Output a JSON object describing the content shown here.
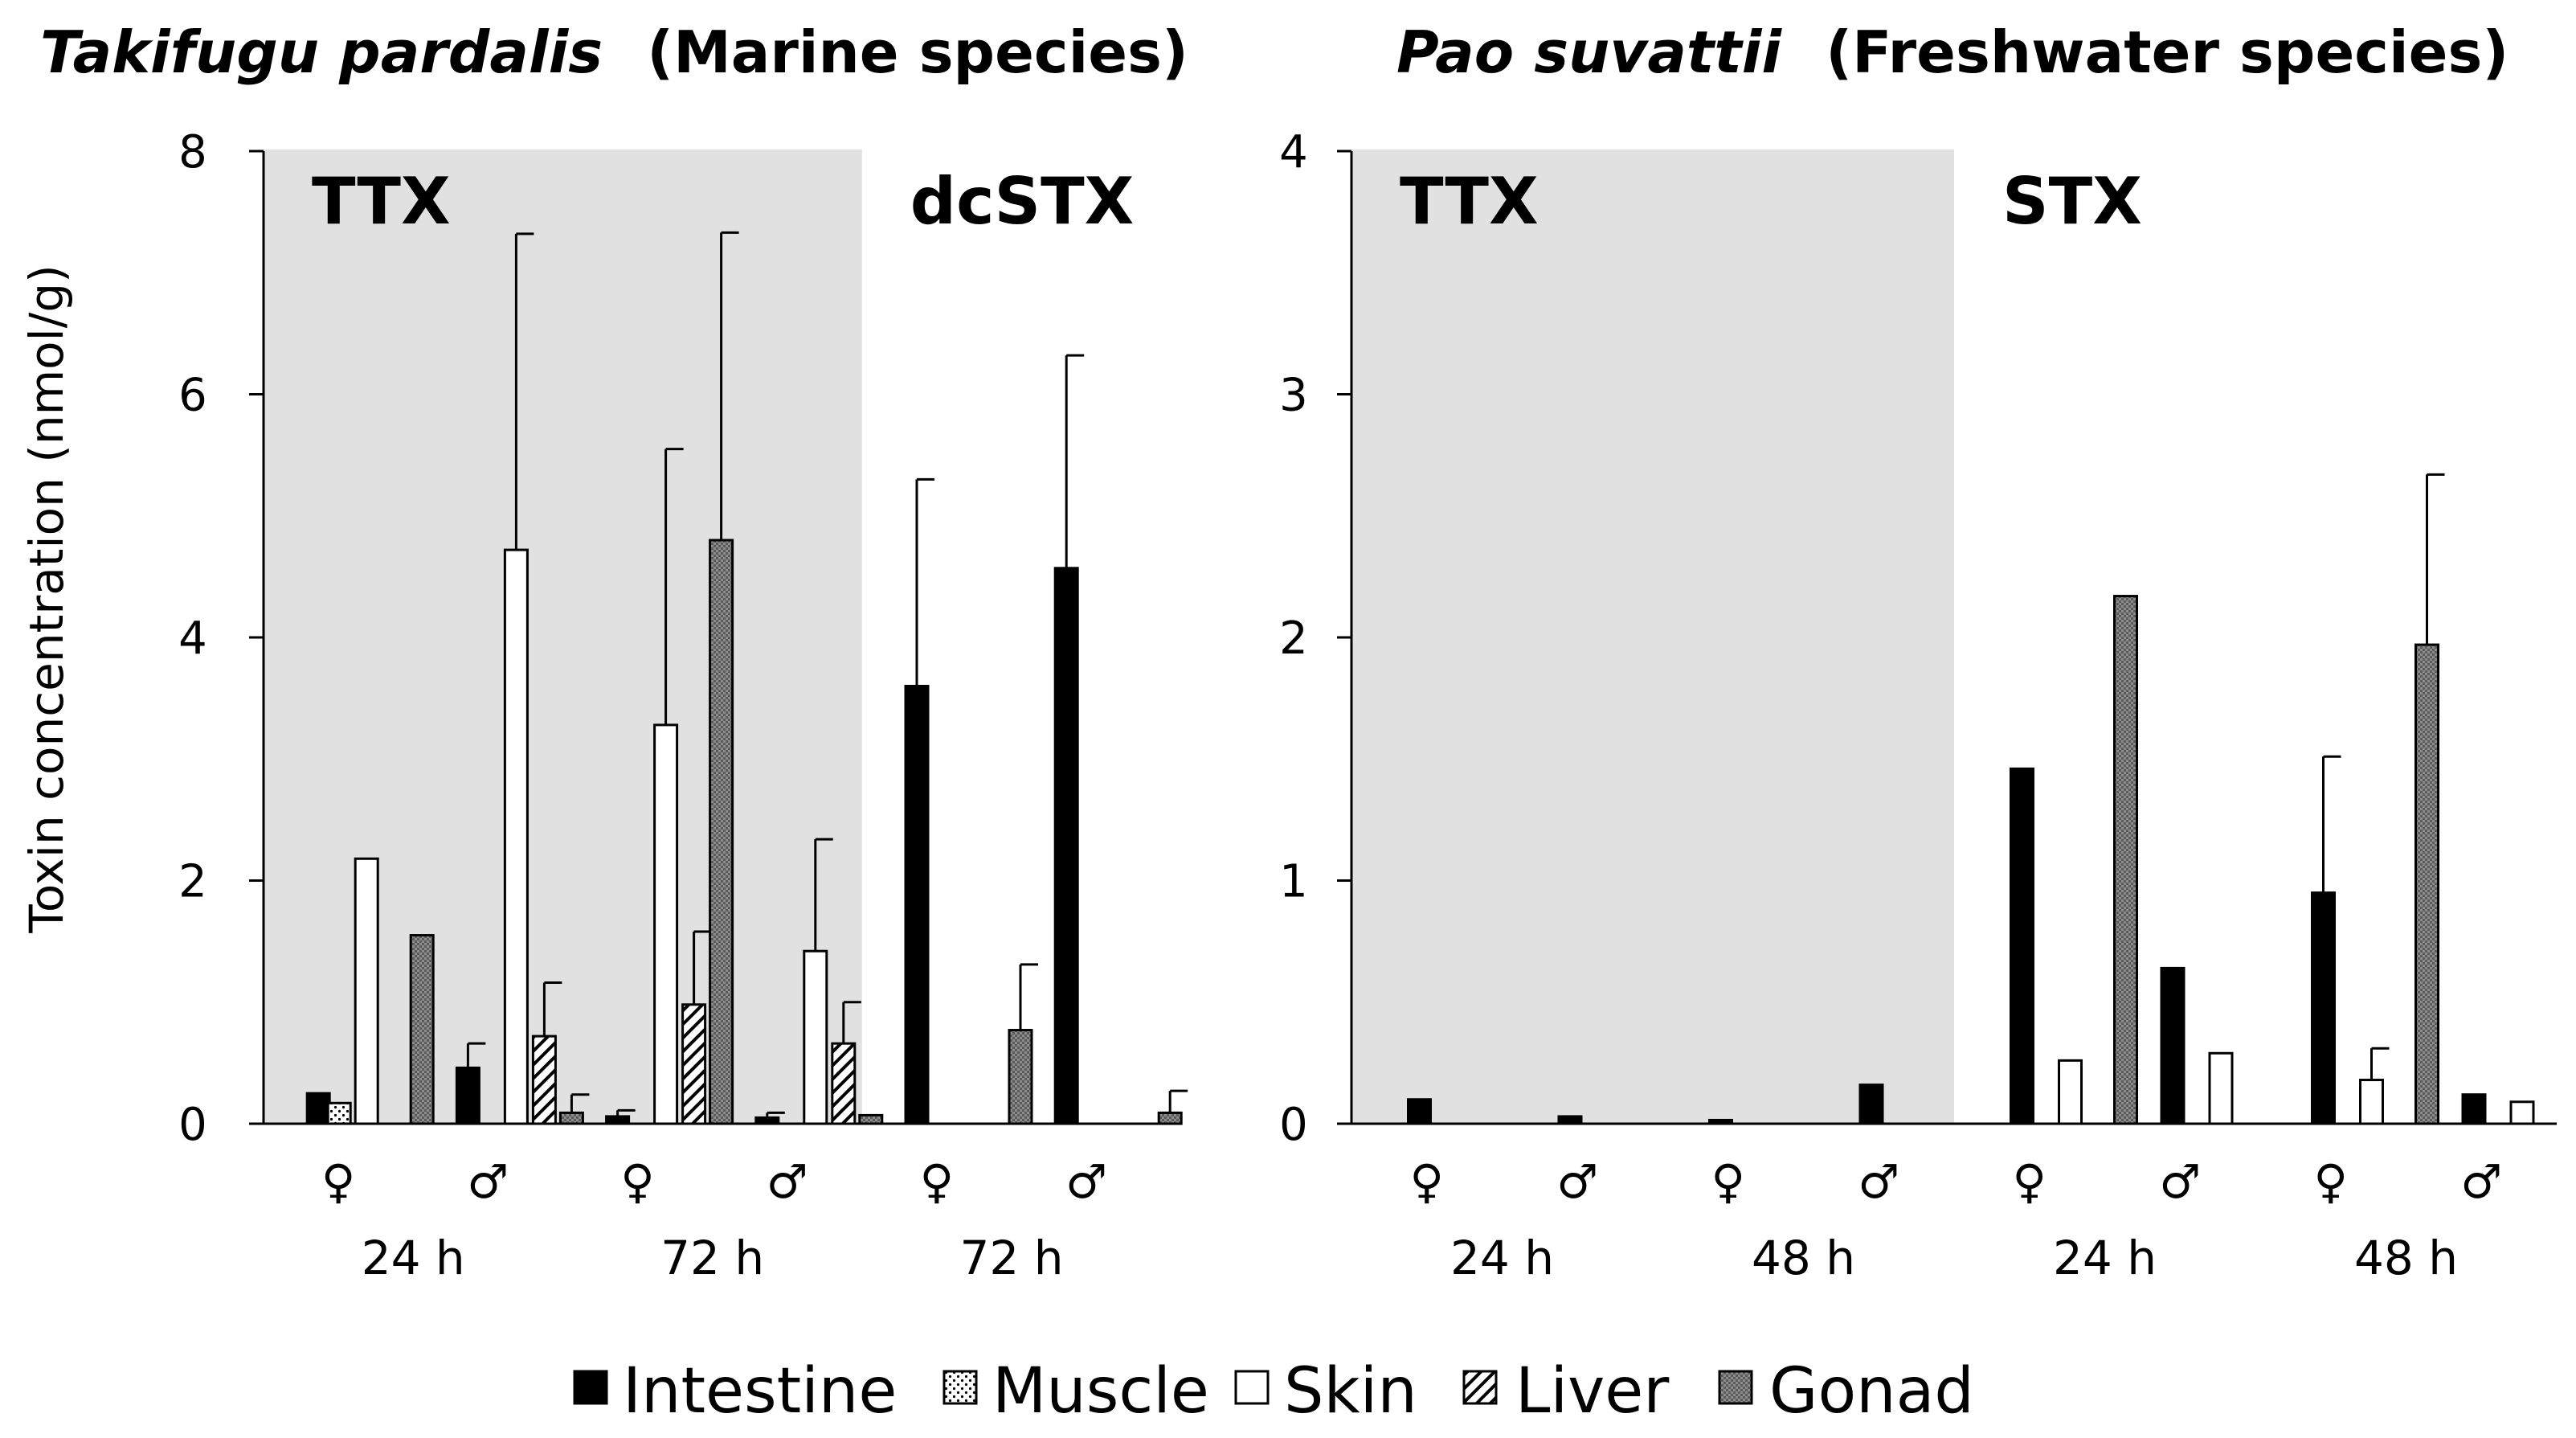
{
  "legend": [
    {
      "key": "intestine",
      "label": "Intestine"
    },
    {
      "key": "muscle",
      "label": "Muscle"
    },
    {
      "key": "skin",
      "label": "Skin"
    },
    {
      "key": "liver",
      "label": "Liver"
    },
    {
      "key": "gonad",
      "label": "Gonad"
    }
  ],
  "colors": {
    "intestine": "#000000",
    "skin": "#ffffff",
    "gonad": "#8c8c8c",
    "shade": "#e1e1e1",
    "axis": "#000000"
  },
  "chart_data": [
    {
      "type": "bar",
      "title_species": "Takifugu pardalis",
      "title_habitat": "(Marine species)",
      "ylabel": "Toxin concentration (nmol/g)",
      "ylim": [
        0,
        8
      ],
      "yticks": [
        "0",
        "2",
        "4",
        "6",
        "8"
      ],
      "toxins": [
        {
          "label": "TTX",
          "shaded": true,
          "first_index": 0,
          "last_index": 3
        },
        {
          "label": "dcSTX",
          "shaded": false,
          "first_index": 4,
          "last_index": 5
        }
      ],
      "categories": [
        "♀",
        "♂",
        "♀",
        "♂",
        "♀",
        "♂"
      ],
      "time_groups": [
        {
          "label": "24 h",
          "first_index": 0,
          "last_index": 1
        },
        {
          "label": "72 h",
          "first_index": 2,
          "last_index": 3
        },
        {
          "label": "72 h",
          "first_index": 4,
          "last_index": 5
        }
      ],
      "series": [
        {
          "name": "Intestine",
          "key": "intestine",
          "values": [
            0.25,
            0.46,
            0.06,
            0.05,
            3.6,
            4.57
          ],
          "errors": [
            0,
            0.2,
            0.05,
            0.04,
            1.7,
            1.75
          ]
        },
        {
          "name": "Muscle",
          "key": "muscle",
          "values": [
            0.17,
            0,
            0,
            0,
            0,
            0
          ],
          "errors": [
            0,
            0,
            0,
            0,
            0,
            0
          ]
        },
        {
          "name": "Skin",
          "key": "skin",
          "values": [
            2.18,
            4.72,
            3.28,
            1.42,
            0,
            0
          ],
          "errors": [
            0,
            2.6,
            2.27,
            0.92,
            0,
            0
          ]
        },
        {
          "name": "Liver",
          "key": "liver",
          "values": [
            0,
            0.72,
            0.98,
            0.66,
            0,
            0
          ],
          "errors": [
            0,
            0.44,
            0.6,
            0.34,
            0,
            0
          ]
        },
        {
          "name": "Gonad",
          "key": "gonad",
          "values": [
            1.55,
            0.09,
            4.8,
            0.07,
            0.77,
            0.09
          ],
          "errors": [
            0,
            0.15,
            2.53,
            0,
            0.54,
            0.18
          ]
        }
      ]
    },
    {
      "type": "bar",
      "title_species": "Pao suvattii",
      "title_habitat": "(Freshwater species)",
      "ylabel": "",
      "ylim": [
        0,
        4
      ],
      "yticks": [
        "0",
        "1",
        "2",
        "3",
        "4"
      ],
      "toxins": [
        {
          "label": "TTX",
          "shaded": true,
          "first_index": 0,
          "last_index": 3
        },
        {
          "label": "STX",
          "shaded": false,
          "first_index": 4,
          "last_index": 7
        }
      ],
      "categories": [
        "♀",
        "♂",
        "♀",
        "♂",
        "♀",
        "♂",
        "♀",
        "♂"
      ],
      "time_groups": [
        {
          "label": "24 h",
          "first_index": 0,
          "last_index": 1
        },
        {
          "label": "48 h",
          "first_index": 2,
          "last_index": 3
        },
        {
          "label": "24 h",
          "first_index": 4,
          "last_index": 5
        },
        {
          "label": "48 h",
          "first_index": 6,
          "last_index": 7
        }
      ],
      "series": [
        {
          "name": "Intestine",
          "key": "intestine",
          "values": [
            0.1,
            0.03,
            0.015,
            0.16,
            1.46,
            0.64,
            0.95,
            0.12
          ],
          "errors": [
            0,
            0,
            0,
            0,
            0,
            0,
            0.56,
            0
          ]
        },
        {
          "name": "Muscle",
          "key": "muscle",
          "values": [
            0,
            0,
            0,
            0,
            0,
            0,
            0,
            0
          ],
          "errors": [
            0,
            0,
            0,
            0,
            0,
            0,
            0,
            0
          ]
        },
        {
          "name": "Skin",
          "key": "skin",
          "values": [
            0,
            0,
            0,
            0,
            0.26,
            0.29,
            0.18,
            0.09
          ],
          "errors": [
            0,
            0,
            0,
            0,
            0,
            0,
            0.13,
            0
          ]
        },
        {
          "name": "Liver",
          "key": "liver",
          "values": [
            0,
            0,
            0,
            0,
            0,
            0,
            0,
            0
          ],
          "errors": [
            0,
            0,
            0,
            0,
            0,
            0,
            0,
            0
          ]
        },
        {
          "name": "Gonad",
          "key": "gonad",
          "values": [
            0,
            0,
            0,
            0,
            2.17,
            0,
            1.97,
            0
          ],
          "errors": [
            0,
            0,
            0,
            0,
            0,
            0,
            0.7,
            0
          ]
        }
      ]
    }
  ]
}
